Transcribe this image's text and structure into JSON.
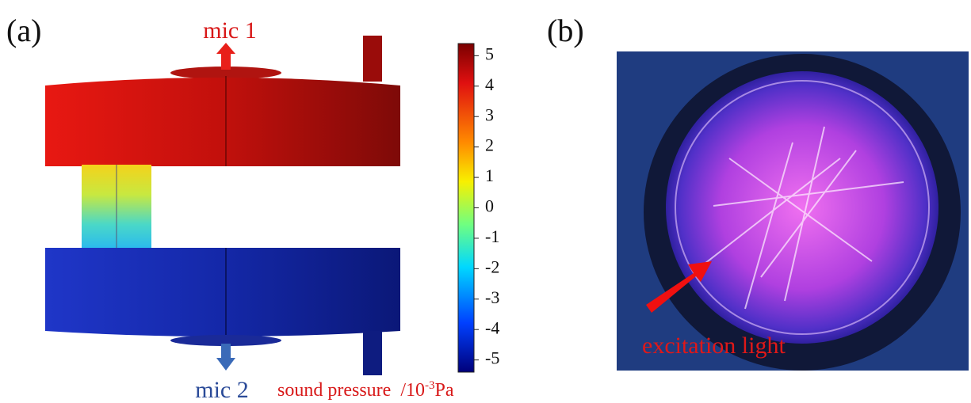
{
  "panels": [
    {
      "label": "(a)",
      "top_annotation": "mic 1",
      "bottom_annotation": "mic 2",
      "colorbar": {
        "title": "sound pressure",
        "unit_prefix": "/10",
        "unit_exponent": "-3",
        "unit_suffix": "Pa",
        "lim": [
          -5.4,
          5.4
        ],
        "ticks": [
          5,
          4,
          3,
          2,
          1,
          0,
          -1,
          -2,
          -3,
          -4,
          -5
        ]
      }
    },
    {
      "label": "(b)",
      "annotation": "excitation light"
    }
  ]
}
